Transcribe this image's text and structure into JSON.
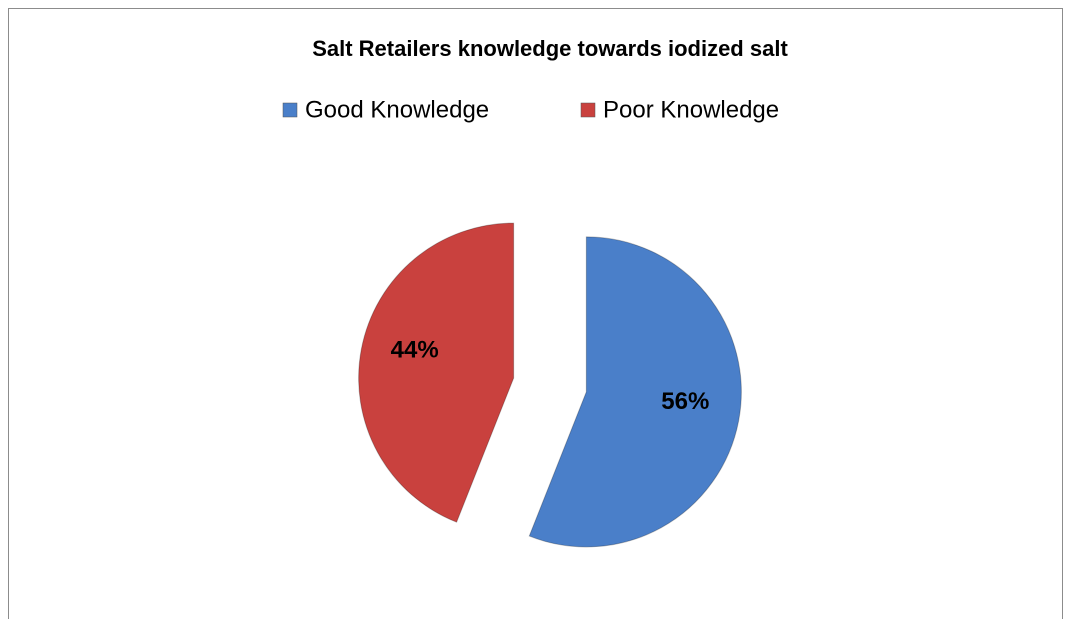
{
  "chart_data": {
    "type": "pie",
    "title": "Salt Retailers knowledge towards iodized salt",
    "categories": [
      "Good Knowledge",
      "Poor Knowledge"
    ],
    "values": [
      56,
      44
    ],
    "value_labels": [
      "56%",
      "44%"
    ],
    "colors": [
      "#4a7fc9",
      "#c9413e"
    ],
    "legend": "top"
  }
}
